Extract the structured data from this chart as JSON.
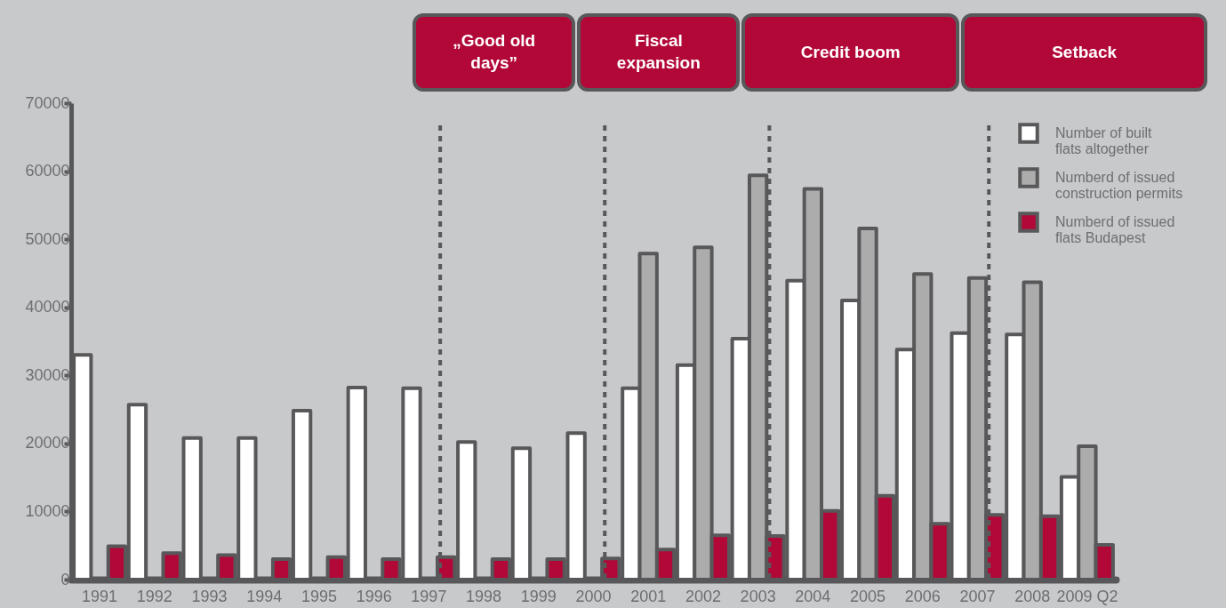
{
  "chart_data": {
    "type": "bar",
    "categories": [
      "1991",
      "1992",
      "1993",
      "1994",
      "1995",
      "1996",
      "1997",
      "1998",
      "1999",
      "2000",
      "2001",
      "2002",
      "2003",
      "2004",
      "2005",
      "2006",
      "2007",
      "2008",
      "2009 Q2"
    ],
    "series": [
      {
        "name": "Number of built flats altogether",
        "color": "#ffffff",
        "values": [
          33000,
          25700,
          20800,
          20800,
          24800,
          28200,
          28100,
          20200,
          19300,
          21500,
          28100,
          31500,
          35400,
          43900,
          41000,
          33800,
          36200,
          36000,
          15100
        ]
      },
      {
        "name": "Numberd of issued construction permits",
        "color": "#acacac",
        "values": [
          null,
          null,
          null,
          null,
          null,
          null,
          null,
          null,
          null,
          null,
          47900,
          48800,
          59400,
          57400,
          51600,
          44900,
          44300,
          43700,
          19600
        ]
      },
      {
        "name": "Numberd of issued flats Budapest",
        "color": "#b20838",
        "values": [
          4900,
          3900,
          3600,
          3000,
          3300,
          3000,
          3300,
          3000,
          3000,
          3100,
          4400,
          6500,
          6400,
          10100,
          12300,
          8200,
          9500,
          9300,
          5100
        ]
      }
    ],
    "ylim": [
      0,
      70000
    ],
    "yticks": [
      0,
      10000,
      20000,
      30000,
      40000,
      50000,
      60000,
      70000
    ],
    "ref_lines": [
      {
        "axis": "x",
        "value": "1997",
        "color": "#58585a",
        "line_style": "dashed"
      },
      {
        "axis": "x",
        "value": "2000",
        "color": "#58585a",
        "line_style": "dashed"
      },
      {
        "axis": "x",
        "value": "2003",
        "color": "#58585a",
        "line_style": "dashed"
      },
      {
        "axis": "x",
        "value": "2007",
        "color": "#58585a",
        "line_style": "dashed"
      }
    ],
    "annotations": [
      "„Good old days”",
      "Fiscal expansion",
      "Credit boom",
      "Setback"
    ],
    "legend": "top right",
    "grid": false
  }
}
